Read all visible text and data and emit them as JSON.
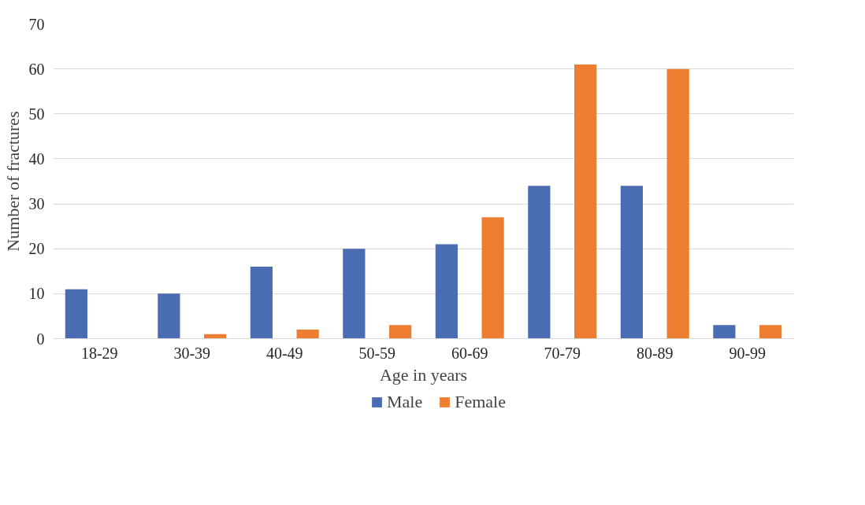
{
  "chart_data": {
    "type": "bar",
    "xlabel": "Age in years",
    "ylabel": "Number of fractures",
    "categories": [
      "18-29",
      "30-39",
      "40-49",
      "50-59",
      "60-69",
      "70-79",
      "80-89",
      "90-99"
    ],
    "series": [
      {
        "name": "Male",
        "color": "#4a6cb3",
        "values": [
          11,
          10,
          16,
          20,
          21,
          34,
          34,
          3
        ]
      },
      {
        "name": "Female",
        "color": "#ed7d31",
        "values": [
          0,
          1,
          2,
          3,
          27,
          61,
          60,
          3
        ]
      }
    ],
    "ylim": [
      0,
      70
    ],
    "yticks": [
      0,
      10,
      20,
      30,
      40,
      50,
      60,
      70
    ],
    "grid": "y",
    "legend": "bottom"
  }
}
